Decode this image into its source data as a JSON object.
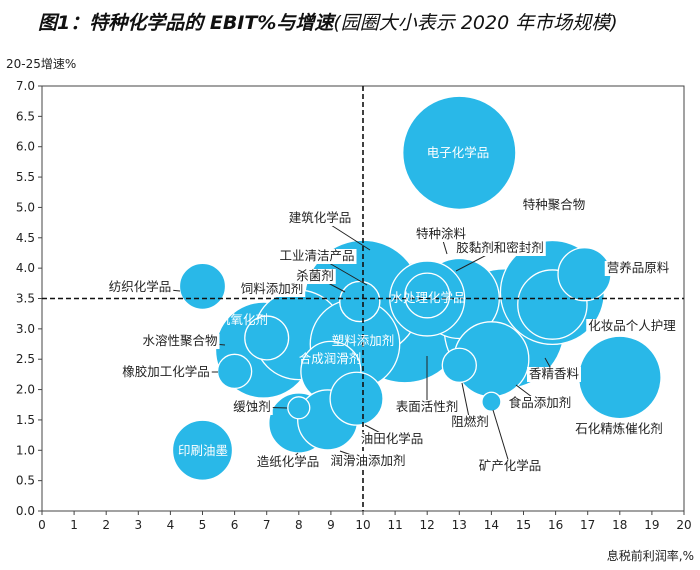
{
  "chart_data": {
    "type": "scatter",
    "title": "图1：特种化学品的 EBIT%与增速",
    "subtitle": "(园圈大小表示 2020 年市场规模)",
    "xlabel": "息税前利润率,%",
    "ylabel": "20-25增速%",
    "xlim": [
      0,
      20
    ],
    "ylim": [
      0,
      7
    ],
    "xticks": [
      "0",
      "1",
      "2",
      "3",
      "4",
      "5",
      "6",
      "7",
      "8",
      "9",
      "10",
      "11",
      "12",
      "13",
      "14",
      "15",
      "16",
      "17",
      "18",
      "19",
      "20"
    ],
    "yticks": [
      "0.0",
      "0.5",
      "1.0",
      "1.5",
      "2.0",
      "2.5",
      "3.0",
      "3.5",
      "4.0",
      "4.5",
      "5.0",
      "5.5",
      "6.0",
      "6.5",
      "7.0"
    ],
    "reference_lines": {
      "x": 10,
      "y": 3.5
    },
    "grid": false,
    "bubble_color": "#29b8e8",
    "points": [
      {
        "name": "表面活性剂",
        "x": 11.3,
        "y": 3.1,
        "size": 36
      },
      {
        "name": "建筑化学品",
        "x": 10.0,
        "y": 3.5,
        "size": 34
      },
      {
        "name": "香精香料",
        "x": 14.4,
        "y": 3.0,
        "size": 36
      },
      {
        "name": "特种聚合物",
        "x": 15.9,
        "y": 3.6,
        "size": 27
      },
      {
        "name": "电子化学品",
        "x": 13.0,
        "y": 5.9,
        "size": 32
      },
      {
        "name": "水溶性聚合物",
        "x": 6.9,
        "y": 2.65,
        "size": 23
      },
      {
        "name": "饲料添加剂",
        "x": 8.0,
        "y": 2.9,
        "size": 20
      },
      {
        "name": "塑料添加剂",
        "x": 9.75,
        "y": 2.75,
        "size": 20
      },
      {
        "name": "胶黏剂和密封剂",
        "x": 13.0,
        "y": 3.5,
        "size": 16
      },
      {
        "name": "特种涂料",
        "x": 12.0,
        "y": 3.5,
        "size": 14
      },
      {
        "name": "石化精炼催化剂",
        "x": 18.0,
        "y": 2.2,
        "size": 17
      },
      {
        "name": "食品添加剂",
        "x": 14.0,
        "y": 2.5,
        "size": 14
      },
      {
        "name": "化妆品个人护理",
        "x": 15.9,
        "y": 3.4,
        "size": 12
      },
      {
        "name": "合成润滑剂",
        "x": 9.0,
        "y": 2.3,
        "size": 9
      },
      {
        "name": "印刷油墨",
        "x": 5.0,
        "y": 1.0,
        "size": 9
      },
      {
        "name": "造纸化学品",
        "x": 8.0,
        "y": 1.45,
        "size": 9
      },
      {
        "name": "润滑油添加剂",
        "x": 8.9,
        "y": 1.5,
        "size": 9
      },
      {
        "name": "油田化学品",
        "x": 9.8,
        "y": 1.85,
        "size": 7
      },
      {
        "name": "营养品原料",
        "x": 16.9,
        "y": 3.9,
        "size": 7
      },
      {
        "name": "纺织化学品",
        "x": 5.0,
        "y": 3.7,
        "size": 5.3
      },
      {
        "name": "水处理化学品",
        "x": 12.0,
        "y": 3.55,
        "size": 5
      },
      {
        "name": "抗氧化剂",
        "x": 7.0,
        "y": 2.85,
        "size": 4.8
      },
      {
        "name": "杀菌剂",
        "x": 9.9,
        "y": 3.45,
        "size": 4
      },
      {
        "name": "工业清洁产品",
        "x": 9.9,
        "y": 3.45,
        "size": 4
      },
      {
        "name": "阻燃剂",
        "x": 13.0,
        "y": 2.4,
        "size": 2.9
      },
      {
        "name": "橡胶加工化学品",
        "x": 6.0,
        "y": 2.3,
        "size": 2.9
      },
      {
        "name": "缓蚀剂",
        "x": 8.0,
        "y": 1.7,
        "size": 1.2
      },
      {
        "name": "矿产化学品",
        "x": 14.0,
        "y": 1.8,
        "size": 0.9
      }
    ]
  }
}
